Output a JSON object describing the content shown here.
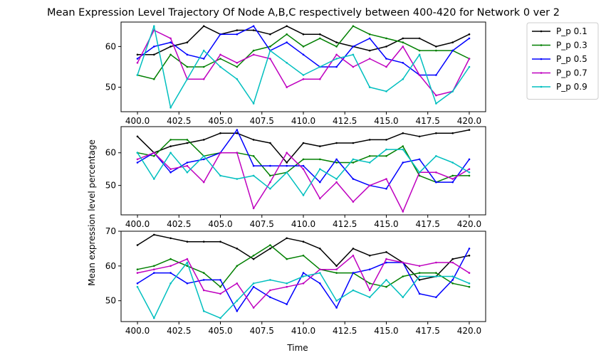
{
  "chart_data": {
    "type": "line",
    "title": "Mean Expression Level Trajectory Of Node A,B,C respectively between 400-420 for Network 0 ver 2",
    "xlabel": "Time",
    "ylabel": "Mean expression level percentage",
    "x": [
      400,
      401,
      402,
      403,
      404,
      405,
      406,
      407,
      408,
      409,
      410,
      411,
      412,
      413,
      414,
      415,
      416,
      417,
      418,
      419,
      420
    ],
    "x_ticks": [
      400.0,
      402.5,
      405.0,
      407.5,
      410.0,
      412.5,
      415.0,
      417.5,
      420.0
    ],
    "x_tick_labels": [
      "400.0",
      "402.5",
      "405.0",
      "407.5",
      "410.0",
      "412.5",
      "415.0",
      "417.5",
      "420.0"
    ],
    "legend": {
      "placement": "outside-top-right",
      "entries": [
        {
          "name": "P_p 0.1",
          "color": "#000000"
        },
        {
          "name": "P_p 0.3",
          "color": "#007f00"
        },
        {
          "name": "P_p 0.5",
          "color": "#0000ff"
        },
        {
          "name": "P_p 0.7",
          "color": "#bf00bf"
        },
        {
          "name": "P_p 0.9",
          "color": "#00bfbf"
        }
      ]
    },
    "panels": [
      {
        "name": "A",
        "ylim": [
          44,
          66
        ],
        "y_ticks": [
          50,
          60
        ],
        "y_tick_labels": [
          "50",
          "60"
        ],
        "series": [
          {
            "name": "P_p 0.1",
            "color": "#000000",
            "values": [
              58,
              58,
              60,
              61,
              65,
              63,
              64,
              64,
              63,
              65,
              63,
              63,
              61,
              60,
              59,
              60,
              62,
              62,
              60,
              61,
              63
            ]
          },
          {
            "name": "P_p 0.3",
            "color": "#007f00",
            "values": [
              53,
              52,
              58,
              55,
              55,
              57,
              55,
              59,
              60,
              63,
              60,
              62,
              60,
              65,
              63,
              62,
              61,
              59,
              59,
              59,
              57
            ]
          },
          {
            "name": "P_p 0.5",
            "color": "#0000ff",
            "values": [
              57,
              60,
              61,
              58,
              57,
              63,
              63,
              65,
              59,
              61,
              58,
              55,
              55,
              60,
              62,
              57,
              56,
              53,
              53,
              59,
              62
            ]
          },
          {
            "name": "P_p 0.7",
            "color": "#bf00bf",
            "values": [
              56,
              64,
              62,
              52,
              52,
              58,
              56,
              58,
              57,
              50,
              52,
              52,
              58,
              55,
              57,
              55,
              60,
              53,
              48,
              49,
              57
            ]
          },
          {
            "name": "P_p 0.9",
            "color": "#00bfbf",
            "values": [
              53,
              65,
              45,
              52,
              59,
              55,
              52,
              46,
              59,
              56,
              53,
              55,
              57,
              58,
              50,
              49,
              52,
              58,
              46,
              49,
              55
            ]
          }
        ]
      },
      {
        "name": "B",
        "ylim": [
          41,
          68
        ],
        "y_ticks": [
          50,
          60
        ],
        "y_tick_labels": [
          "50",
          "60"
        ],
        "series": [
          {
            "name": "P_p 0.1",
            "color": "#000000",
            "values": [
              65,
              60,
              62,
              63,
              64,
              66,
              66,
              64,
              63,
              57,
              63,
              62,
              63,
              63,
              64,
              64,
              66,
              65,
              66,
              66,
              67
            ]
          },
          {
            "name": "P_p 0.3",
            "color": "#007f00",
            "values": [
              60,
              59,
              64,
              64,
              59,
              60,
              60,
              59,
              53,
              54,
              58,
              58,
              57,
              57,
              59,
              59,
              62,
              53,
              51,
              53,
              53
            ]
          },
          {
            "name": "P_p 0.5",
            "color": "#0000ff",
            "values": [
              57,
              60,
              54,
              57,
              58,
              60,
              67,
              56,
              56,
              56,
              56,
              51,
              58,
              52,
              50,
              49,
              57,
              58,
              51,
              51,
              58
            ]
          },
          {
            "name": "P_p 0.7",
            "color": "#bf00bf",
            "values": [
              58,
              60,
              55,
              56,
              51,
              60,
              60,
              43,
              51,
              60,
              55,
              46,
              51,
              45,
              50,
              52,
              42,
              54,
              54,
              52,
              55
            ]
          },
          {
            "name": "P_p 0.9",
            "color": "#00bfbf",
            "values": [
              60,
              52,
              60,
              54,
              59,
              53,
              52,
              53,
              49,
              54,
              47,
              55,
              52,
              58,
              57,
              61,
              61,
              54,
              59,
              57,
              54
            ]
          }
        ]
      },
      {
        "name": "C",
        "ylim": [
          44,
          70
        ],
        "y_ticks": [
          50,
          60,
          70
        ],
        "y_tick_labels": [
          "50",
          "60",
          "70"
        ],
        "series": [
          {
            "name": "P_p 0.1",
            "color": "#000000",
            "values": [
              66,
              69,
              68,
              67,
              67,
              67,
              65,
              62,
              65,
              68,
              67,
              65,
              60,
              65,
              63,
              64,
              61,
              56,
              57,
              62,
              63
            ]
          },
          {
            "name": "P_p 0.3",
            "color": "#007f00",
            "values": [
              59,
              60,
              62,
              60,
              58,
              54,
              60,
              63,
              66,
              62,
              63,
              59,
              58,
              58,
              55,
              54,
              57,
              58,
              58,
              55,
              54
            ]
          },
          {
            "name": "P_p 0.5",
            "color": "#0000ff",
            "values": [
              55,
              58,
              58,
              55,
              56,
              56,
              47,
              54,
              51,
              49,
              58,
              55,
              48,
              58,
              59,
              61,
              61,
              52,
              51,
              56,
              65
            ]
          },
          {
            "name": "P_p 0.7",
            "color": "#bf00bf",
            "values": [
              58,
              59,
              60,
              62,
              53,
              52,
              55,
              48,
              53,
              54,
              55,
              59,
              59,
              63,
              53,
              62,
              61,
              60,
              61,
              61,
              58
            ]
          },
          {
            "name": "P_p 0.9",
            "color": "#00bfbf",
            "values": [
              54,
              45,
              55,
              61,
              47,
              45,
              50,
              55,
              56,
              55,
              57,
              58,
              50,
              53,
              51,
              56,
              51,
              57,
              57,
              57,
              55
            ]
          }
        ]
      }
    ]
  }
}
